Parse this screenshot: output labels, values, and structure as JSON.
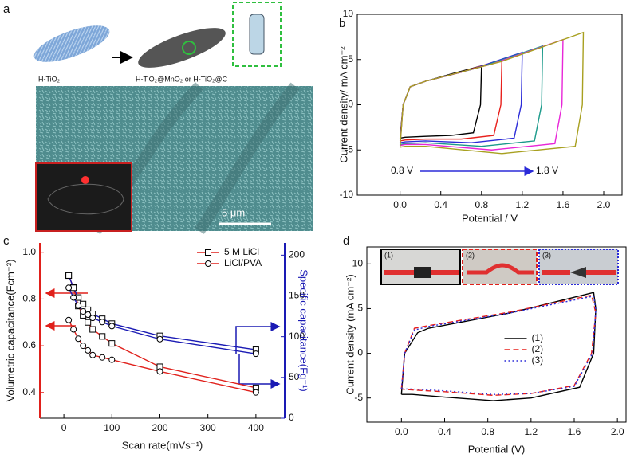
{
  "panel_a": {
    "label": "a",
    "texts": [
      "H-TiO₂",
      "H-TiO₂@MnO₂ or H-TiO₂@C"
    ],
    "scale_bar": "5 μm"
  },
  "chart_data": [
    {
      "type": "line",
      "panel_label": "b",
      "xlabel": "Potential / V",
      "ylabel": "Current density/ mA cm⁻²",
      "xlim": [
        -0.42,
        2.18
      ],
      "ylim": [
        -10,
        10
      ],
      "frame": true,
      "xticks": [
        {
          "value": 0,
          "label": "0.0"
        },
        {
          "value": 0.4,
          "label": "0.4"
        },
        {
          "value": 0.8,
          "label": "0.8"
        },
        {
          "value": 1.2,
          "label": "1.2"
        },
        {
          "value": 1.6,
          "label": "1.6"
        },
        {
          "value": 2,
          "label": "2.0"
        }
      ],
      "yticks": [
        -10,
        -5,
        0,
        5,
        10
      ],
      "annotations": [
        "0.8 V",
        "1.8 V"
      ],
      "series": [
        {
          "color": "#000000",
          "x": [
            0,
            0.03,
            0.1,
            0.25,
            0.5,
            0.8,
            0.79,
            0.72,
            0.5,
            0.25,
            0.05,
            0
          ],
          "values": [
            -3.7,
            0,
            2.0,
            2.6,
            3.4,
            4.3,
            0,
            -3.1,
            -3.4,
            -3.5,
            -3.6,
            -3.7
          ]
        },
        {
          "color": "#e8201c",
          "x": [
            0,
            0.03,
            0.1,
            0.25,
            0.6,
            1.0,
            0.99,
            0.92,
            0.6,
            0.25,
            0.05,
            0
          ],
          "values": [
            -4.0,
            0,
            2.0,
            2.6,
            3.6,
            5.0,
            0,
            -3.4,
            -3.8,
            -3.8,
            -3.9,
            -4.0
          ]
        },
        {
          "color": "#2b2bd8",
          "x": [
            0,
            0.03,
            0.1,
            0.25,
            0.7,
            1.2,
            1.19,
            1.12,
            0.7,
            0.25,
            0.05,
            0
          ],
          "values": [
            -4.2,
            0,
            2.0,
            2.6,
            3.9,
            5.8,
            0,
            -3.7,
            -4.2,
            -4.0,
            -4.1,
            -4.2
          ]
        },
        {
          "color": "#1a9a8a",
          "x": [
            0,
            0.03,
            0.1,
            0.25,
            0.8,
            1.4,
            1.39,
            1.32,
            0.8,
            0.25,
            0.05,
            0
          ],
          "values": [
            -4.4,
            0,
            2.0,
            2.6,
            4.2,
            6.5,
            0,
            -4.0,
            -4.6,
            -4.2,
            -4.3,
            -4.4
          ]
        },
        {
          "color": "#e826d8",
          "x": [
            0,
            0.03,
            0.1,
            0.25,
            0.9,
            1.6,
            1.59,
            1.52,
            0.9,
            0.25,
            0.05,
            0
          ],
          "values": [
            -4.5,
            0,
            2.0,
            2.6,
            4.5,
            7.2,
            0,
            -4.3,
            -5.0,
            -4.4,
            -4.4,
            -4.5
          ]
        },
        {
          "color": "#a8a020",
          "x": [
            0,
            0.03,
            0.1,
            0.25,
            1.0,
            1.8,
            1.79,
            1.72,
            1.0,
            0.25,
            0.05,
            0
          ],
          "values": [
            -4.7,
            0,
            2.0,
            2.6,
            4.8,
            8.0,
            0,
            -4.6,
            -5.4,
            -4.6,
            -4.6,
            -4.7
          ]
        }
      ]
    },
    {
      "type": "line",
      "panel_label": "c",
      "xlabel": "Scan rate(mVs⁻¹)",
      "ylabel": "Volumetric capacitance(Fcm⁻³)",
      "y2label": "Specific capacitance(Fg⁻¹)",
      "xlim": [
        -50,
        460
      ],
      "ylim": [
        0.29,
        1.04
      ],
      "y2lim": [
        0,
        215
      ],
      "frame": false,
      "ycolor": "#e0201b",
      "y2color": "#1a1ab4",
      "legend": "upper right",
      "xticks": [
        0,
        100,
        200,
        300,
        400
      ],
      "yticks": [
        0.4,
        0.6,
        0.8,
        {
          "value": 1,
          "label": "1.0"
        }
      ],
      "y2ticks": [
        0,
        50,
        100,
        150,
        200
      ],
      "series": [
        {
          "name": "5 M LiCl",
          "color": "#e0201b",
          "marker": "square",
          "x": [
            10,
            20,
            30,
            40,
            50,
            60,
            80,
            100,
            200,
            400
          ],
          "values": [
            0.9,
            0.85,
            0.77,
            0.73,
            0.7,
            0.67,
            0.64,
            0.61,
            0.51,
            0.42
          ]
        },
        {
          "name": "LiCl/PVA",
          "color": "#e0201b",
          "marker": "circle",
          "x": [
            10,
            20,
            30,
            40,
            50,
            60,
            80,
            100,
            200,
            400
          ],
          "values": [
            0.71,
            0.67,
            0.63,
            0.6,
            0.58,
            0.56,
            0.55,
            0.54,
            0.49,
            0.4
          ]
        },
        {
          "color": "#1a1ab4",
          "marker": "square",
          "axis": "y2",
          "x": [
            10,
            20,
            30,
            40,
            50,
            60,
            80,
            100,
            200,
            400
          ],
          "values": [
            175,
            160,
            148,
            140,
            133,
            128,
            122,
            116,
            101,
            84
          ]
        },
        {
          "color": "#1a1ab4",
          "marker": "circle",
          "axis": "y2",
          "x": [
            10,
            20,
            30,
            40,
            50,
            60,
            80,
            100,
            200,
            400
          ],
          "values": [
            160,
            148,
            138,
            131,
            127,
            123,
            118,
            113,
            97,
            79
          ]
        }
      ]
    },
    {
      "type": "line",
      "panel_label": "d",
      "xlabel": "Potential (V)",
      "ylabel": "Current density (mA cm⁻²)",
      "xlim": [
        -0.32,
        2.08
      ],
      "ylim": [
        -7.7,
        11.9
      ],
      "frame": true,
      "legend": "center",
      "xticks": [
        {
          "value": 0,
          "label": "0.0"
        },
        {
          "value": 0.4,
          "label": "0.4"
        },
        {
          "value": 0.8,
          "label": "0.8"
        },
        {
          "value": 1.2,
          "label": "1.2"
        },
        {
          "value": 1.6,
          "label": "1.6"
        },
        {
          "value": 2,
          "label": "2.0"
        }
      ],
      "yticks": [
        -5,
        0,
        5,
        10
      ],
      "insets": [
        "(1)",
        "(2)",
        "(3)"
      ],
      "series": [
        {
          "name": "(1)",
          "color": "#000000",
          "dash": "solid",
          "x": [
            0,
            0.03,
            0.15,
            0.25,
            1.0,
            1.78,
            1.8,
            1.78,
            1.65,
            1.2,
            0.85,
            0.4,
            0.1,
            0
          ],
          "values": [
            -4.6,
            0,
            2.3,
            2.8,
            4.5,
            6.8,
            5,
            0,
            -3.8,
            -5.0,
            -5.3,
            -4.9,
            -4.6,
            -4.6
          ]
        },
        {
          "name": "(2)",
          "color": "#e8201c",
          "dash": "dashed",
          "x": [
            0,
            0.03,
            0.12,
            0.25,
            1.0,
            1.76,
            1.8,
            1.76,
            1.6,
            1.2,
            0.85,
            0.4,
            0.1,
            0
          ],
          "values": [
            -4.0,
            0,
            2.8,
            3.1,
            4.6,
            6.5,
            4.5,
            0,
            -3.6,
            -4.5,
            -4.7,
            -4.3,
            -4.1,
            -4.0
          ]
        },
        {
          "name": "(3)",
          "color": "#2b2bd8",
          "dash": "dotted",
          "x": [
            0,
            0.03,
            0.12,
            0.25,
            1.0,
            1.78,
            1.8,
            1.77,
            1.6,
            1.2,
            0.85,
            0.4,
            0.1,
            0
          ],
          "values": [
            -4.0,
            0,
            2.6,
            3.0,
            4.5,
            6.4,
            4.8,
            0,
            -3.7,
            -4.5,
            -4.6,
            -4.2,
            -4.0,
            -4.0
          ]
        }
      ]
    }
  ]
}
